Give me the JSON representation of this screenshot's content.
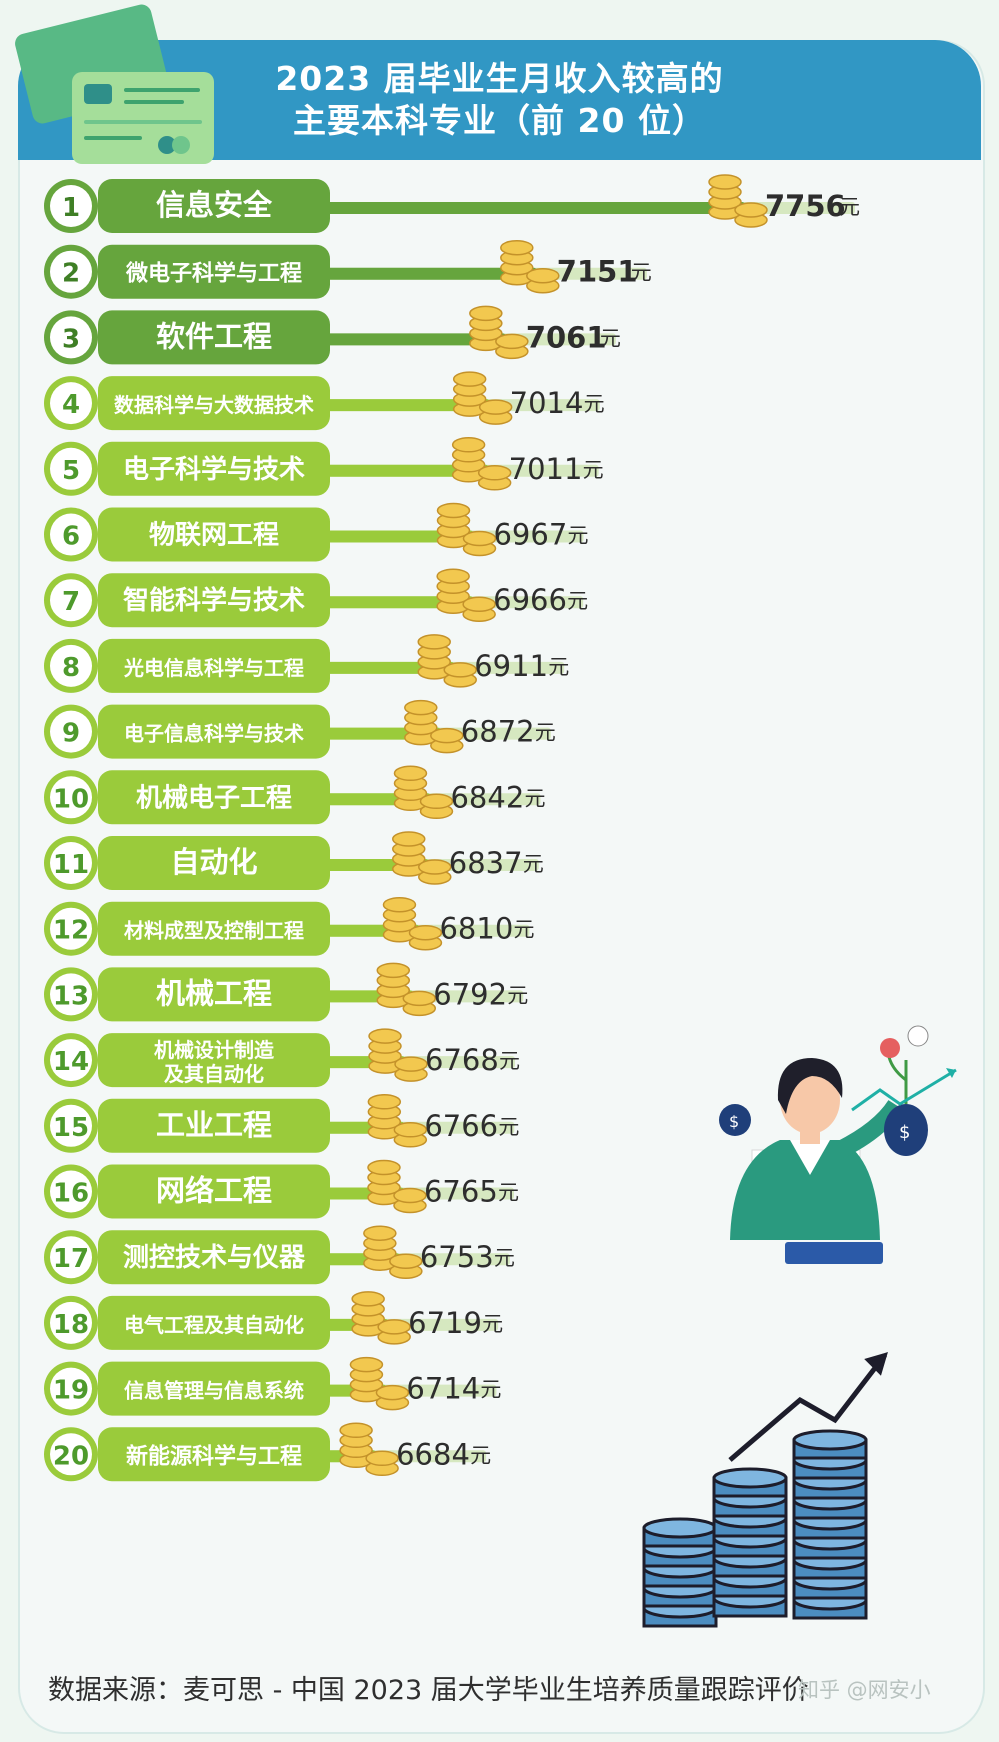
{
  "title_line1": "2023 届毕业生月收入较高的",
  "title_line2": "主要本科专业（前 20 位）",
  "source": "数据来源：麦可思 - 中国 2023 届大学毕业生培养质量跟踪评价",
  "watermark": "知乎 @网安小",
  "colors": {
    "header": "#3197c4",
    "pill_dark": "#66a53d",
    "pill_light": "#9acb3b",
    "number_text": "#4e9a2c",
    "coin": "#f2c84f",
    "coin_edge": "#c4922a"
  },
  "chart_data": {
    "type": "bar",
    "title": "2023 届毕业生月收入较高的主要本科专业（前 20 位）",
    "unit": "元",
    "ranks": [
      "1",
      "2",
      "3",
      "4",
      "5",
      "6",
      "7",
      "8",
      "9",
      "10",
      "11",
      "12",
      "13",
      "14",
      "15",
      "16",
      "17",
      "18",
      "19",
      "20"
    ],
    "categories": [
      "信息安全",
      "微电子科学与工程",
      "软件工程",
      "数据科学与大数据技术",
      "电子科学与技术",
      "物联网工程",
      "智能科学与技术",
      "光电信息科学与工程",
      "电子信息科学与技术",
      "机械电子工程",
      "自动化",
      "材料成型及控制工程",
      "机械工程",
      "机械设计制造\n及其自动化",
      "工业工程",
      "网络工程",
      "测控技术与仪器",
      "电气工程及其自动化",
      "信息管理与信息系统",
      "新能源科学与工程"
    ],
    "values": [
      7756,
      7151,
      7061,
      7014,
      7011,
      6967,
      6966,
      6911,
      6872,
      6842,
      6837,
      6810,
      6792,
      6768,
      6766,
      6765,
      6753,
      6719,
      6714,
      6684
    ],
    "highlight_top": 3
  }
}
